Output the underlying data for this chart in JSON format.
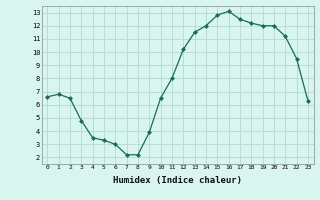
{
  "xlabel": "Humidex (Indice chaleur)",
  "hours": [
    0,
    1,
    2,
    3,
    4,
    5,
    6,
    7,
    8,
    9,
    10,
    11,
    12,
    13,
    14,
    15,
    16,
    17,
    18,
    19,
    20,
    21,
    22,
    23
  ],
  "values": [
    6.6,
    6.8,
    6.5,
    4.8,
    3.5,
    3.3,
    3.0,
    2.2,
    2.2,
    3.9,
    6.5,
    8.0,
    10.2,
    11.5,
    12.0,
    12.8,
    13.1,
    12.5,
    12.2,
    12.0,
    12.0,
    11.2,
    9.5,
    6.3
  ],
  "xlim": [
    -0.5,
    23.5
  ],
  "ylim": [
    1.5,
    13.5
  ],
  "yticks": [
    2,
    3,
    4,
    5,
    6,
    7,
    8,
    9,
    10,
    11,
    12,
    13
  ],
  "xticks": [
    0,
    1,
    2,
    3,
    4,
    5,
    6,
    7,
    8,
    9,
    10,
    11,
    12,
    13,
    14,
    15,
    16,
    17,
    18,
    19,
    20,
    21,
    22,
    23
  ],
  "line_color": "#1a6b5a",
  "marker_color": "#1a6b5a",
  "bg_color": "#d8f5ef",
  "grid_color": "#b8ddd6"
}
